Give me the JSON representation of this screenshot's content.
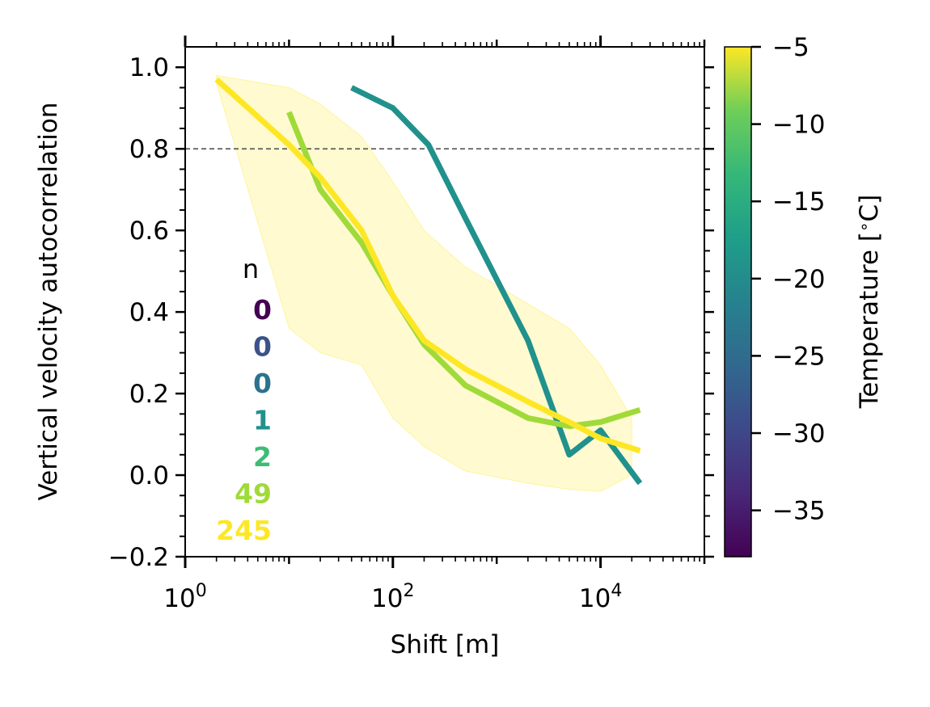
{
  "chart_data": {
    "type": "line",
    "xlabel": "Shift [m]",
    "ylabel": "Vertical velocity autocorrelation",
    "xscale": "log",
    "xlim": [
      1,
      100000
    ],
    "ylim": [
      -0.2,
      1.05
    ],
    "x_ticks": [
      {
        "value": 1,
        "base": "10",
        "exp": "0"
      },
      {
        "value": 100,
        "base": "10",
        "exp": "2"
      },
      {
        "value": 10000,
        "base": "10",
        "exp": "4"
      }
    ],
    "y_ticks": [
      {
        "value": -0.2,
        "label": "−0.2"
      },
      {
        "value": 0.0,
        "label": "0.0"
      },
      {
        "value": 0.2,
        "label": "0.2"
      },
      {
        "value": 0.4,
        "label": "0.4"
      },
      {
        "value": 0.6,
        "label": "0.6"
      },
      {
        "value": 0.8,
        "label": "0.8"
      },
      {
        "value": 1.0,
        "label": "1.0"
      }
    ],
    "reference_line": {
      "y": 0.8,
      "style": "dashed",
      "color": "#666666"
    },
    "band": {
      "color": "#fde725",
      "opacity": 0.22,
      "x": [
        2,
        10,
        20,
        50,
        100,
        200,
        500,
        2000,
        5000,
        10000,
        20000
      ],
      "upper": [
        0.98,
        0.95,
        0.91,
        0.83,
        0.72,
        0.6,
        0.51,
        0.42,
        0.36,
        0.27,
        0.14
      ],
      "lower": [
        0.96,
        0.36,
        0.3,
        0.27,
        0.14,
        0.07,
        0.01,
        -0.02,
        -0.035,
        -0.04,
        0.0
      ]
    },
    "series": [
      {
        "color": "#21918c",
        "x": [
          40,
          100,
          220,
          500,
          2000,
          5000,
          10000,
          24000
        ],
        "values": [
          0.95,
          0.9,
          0.81,
          0.63,
          0.33,
          0.05,
          0.11,
          -0.02
        ]
      },
      {
        "color": "#a0da39",
        "x": [
          10,
          20,
          50,
          100,
          200,
          500,
          2000,
          5000,
          10000,
          24000
        ],
        "values": [
          0.89,
          0.7,
          0.57,
          0.44,
          0.32,
          0.22,
          0.14,
          0.12,
          0.13,
          0.16
        ]
      },
      {
        "color": "#fde725",
        "x": [
          2,
          10,
          20,
          50,
          100,
          200,
          500,
          2000,
          5000,
          10000,
          24000
        ],
        "values": [
          0.97,
          0.81,
          0.73,
          0.6,
          0.44,
          0.33,
          0.26,
          0.18,
          0.13,
          0.09,
          0.06
        ]
      }
    ],
    "count_table": {
      "header": "n",
      "entries": [
        {
          "value": "0",
          "color": "#440154"
        },
        {
          "value": "0",
          "color": "#3b528b"
        },
        {
          "value": "0",
          "color": "#2c728e"
        },
        {
          "value": "1",
          "color": "#21918c"
        },
        {
          "value": "2",
          "color": "#3fbc73"
        },
        {
          "value": "49",
          "color": "#a0da39"
        },
        {
          "value": "245",
          "color": "#fde725"
        }
      ]
    },
    "colorbar": {
      "label": "Temperature [$^\\circ$C]",
      "label_text": "Temperature [",
      "label_degree": "∘",
      "label_end": "C]",
      "range": [
        -38,
        -5
      ],
      "colormap": "viridis",
      "ticks": [
        {
          "value": -5,
          "label": "−5"
        },
        {
          "value": -10,
          "label": "−10"
        },
        {
          "value": -15,
          "label": "−15"
        },
        {
          "value": -20,
          "label": "−20"
        },
        {
          "value": -25,
          "label": "−25"
        },
        {
          "value": -30,
          "label": "−30"
        },
        {
          "value": -35,
          "label": "−35"
        }
      ]
    }
  }
}
